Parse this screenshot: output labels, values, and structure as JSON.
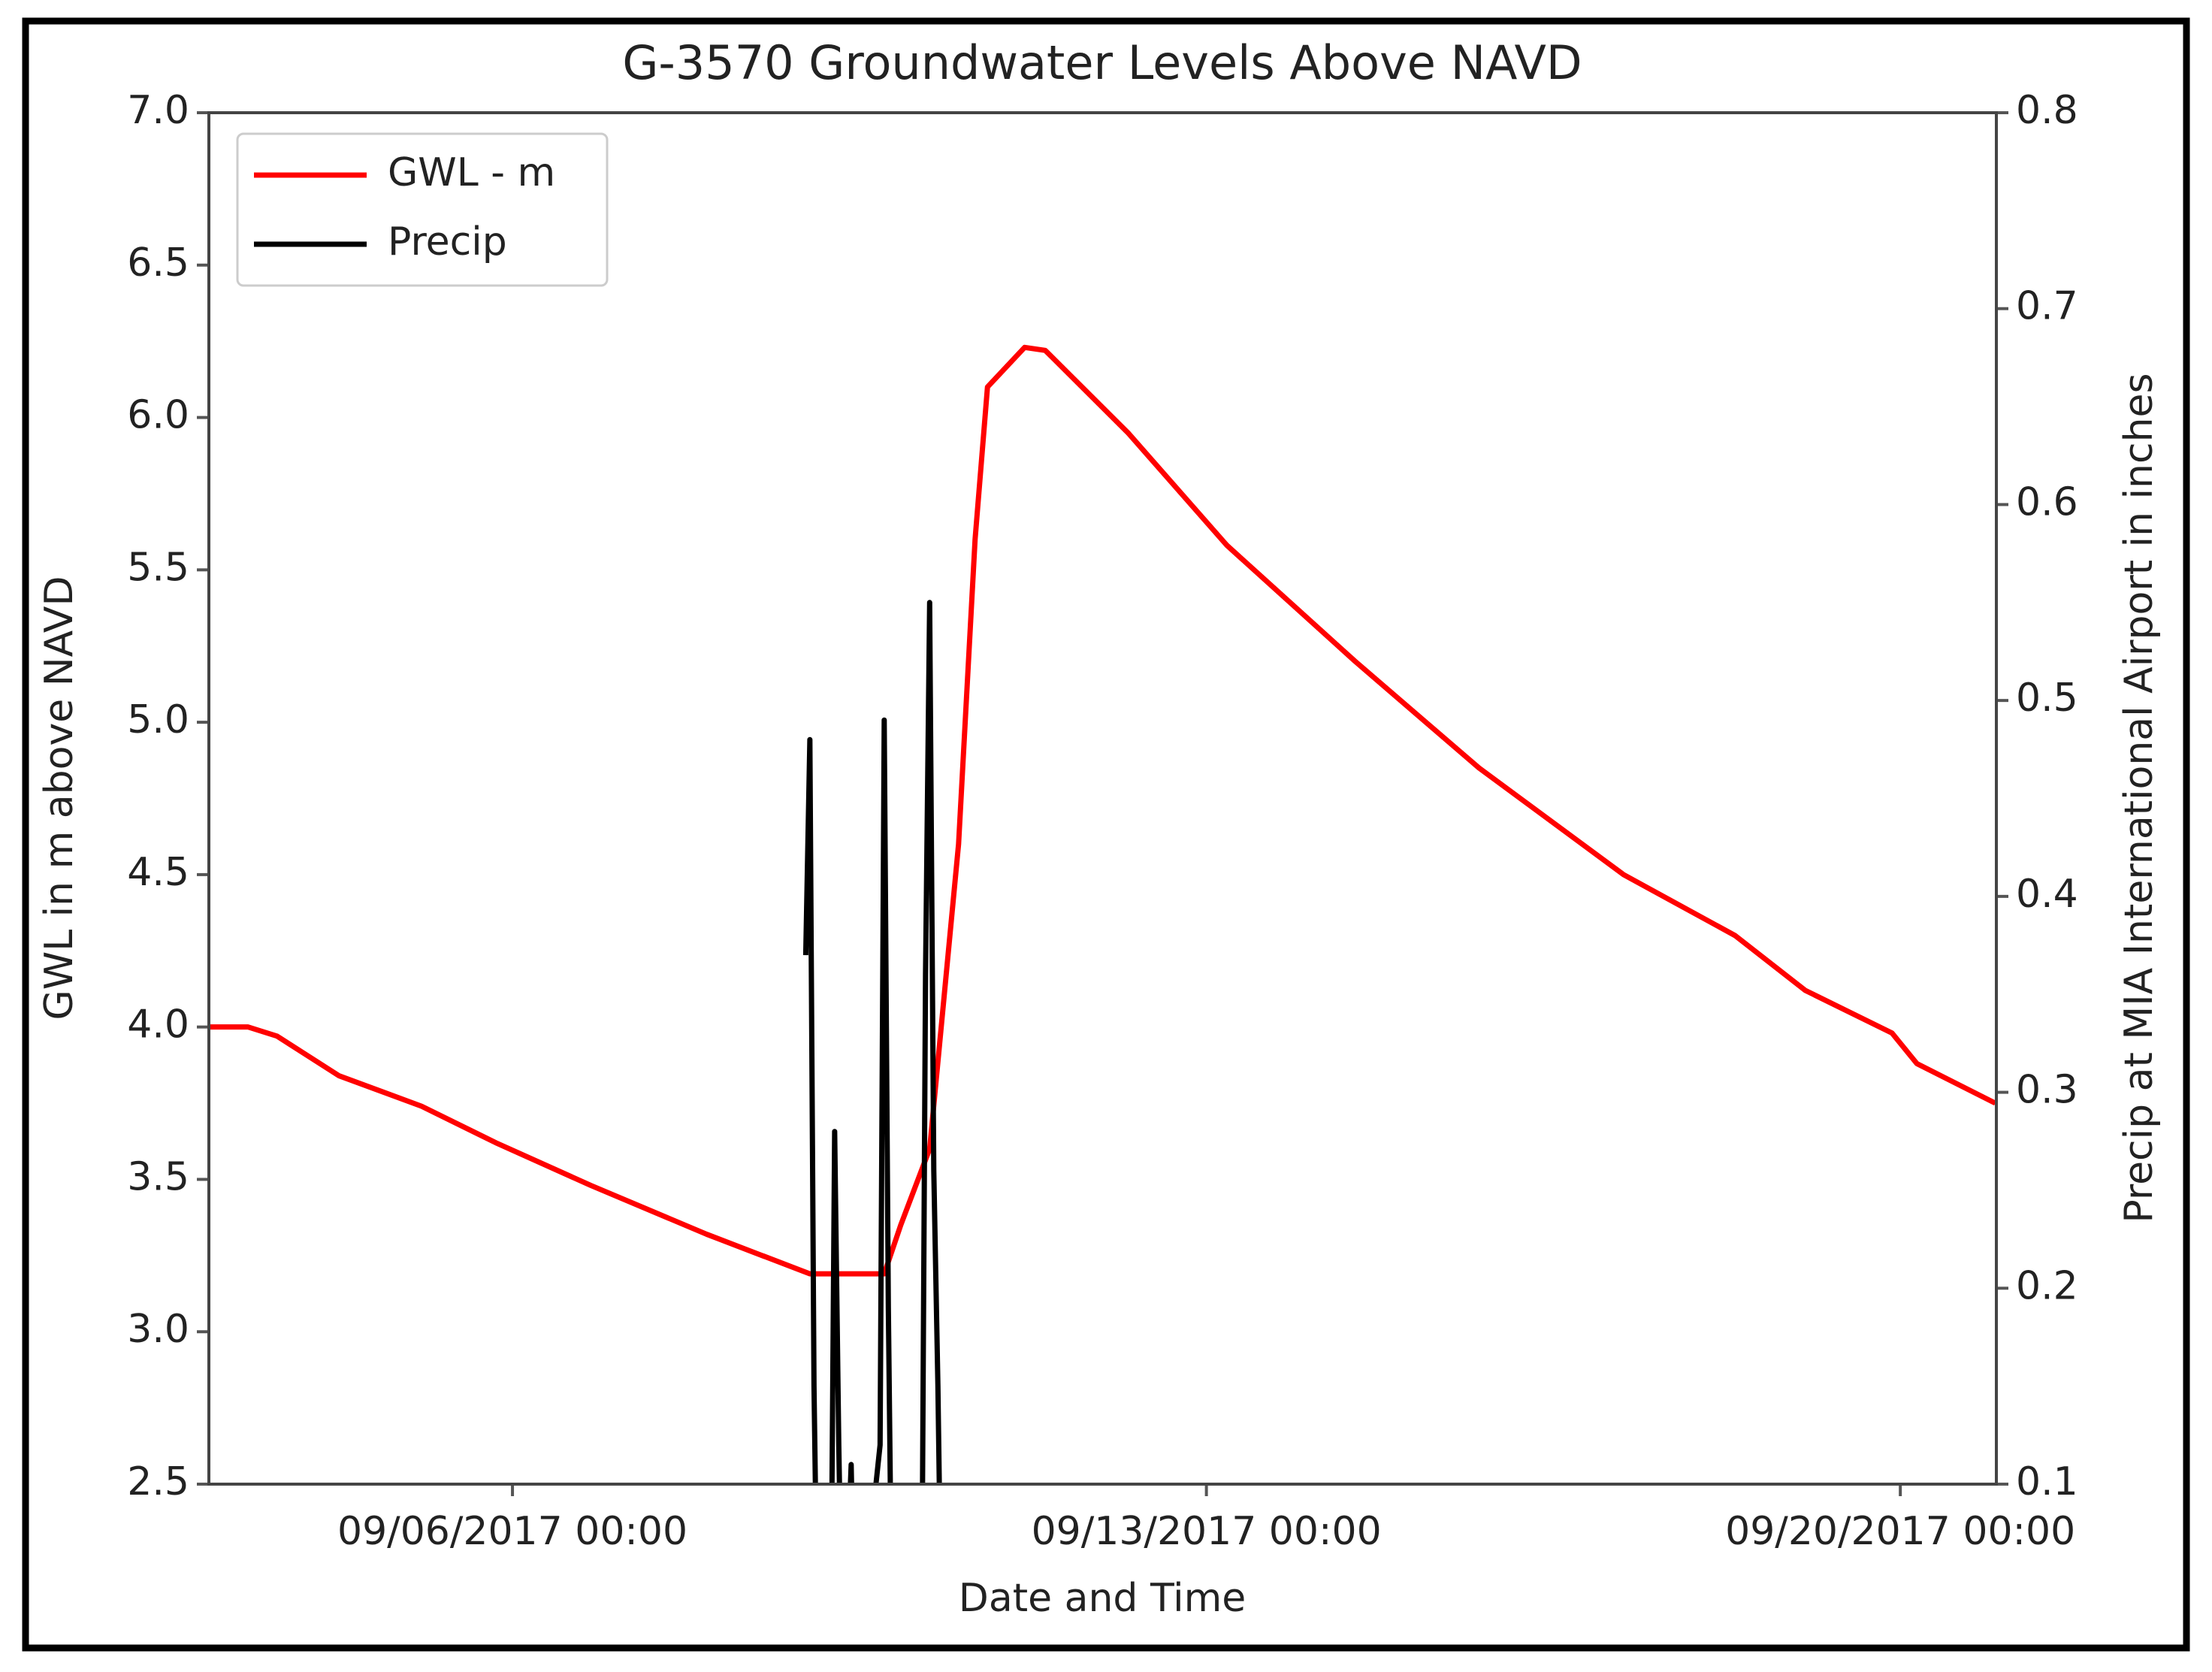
{
  "chart_data": {
    "type": "line",
    "title": "G-3570 Groundwater Levels Above NAVD",
    "xlabel": "Date and Time",
    "ylabel": "GWL in m above NAVD",
    "y2label": "Precip at MIA International Airport in inches",
    "legend": "upper left",
    "xlim": [
      "2017-09-02T22:30",
      "2017-09-20T23:15"
    ],
    "xticks": [
      {
        "value": "2017-09-06T00:00",
        "label": "09/06/2017 00:00"
      },
      {
        "value": "2017-09-13T00:00",
        "label": "09/13/2017 00:00"
      },
      {
        "value": "2017-09-20T00:00",
        "label": "09/20/2017 00:00"
      }
    ],
    "ylim": [
      2.5,
      7
    ],
    "yticks": [
      2.5,
      {
        "value": 3,
        "label": "3.0"
      },
      3.5,
      {
        "value": 4,
        "label": "4.0"
      },
      4.5,
      {
        "value": 5,
        "label": "5.0"
      },
      5.5,
      {
        "value": 6,
        "label": "6.0"
      },
      6.5,
      {
        "value": 7,
        "label": "7.0"
      }
    ],
    "y2lim": [
      0.1,
      0.8
    ],
    "y2ticks": [
      0.1,
      0.2,
      0.3,
      0.4,
      0.5,
      0.6,
      0.7,
      0.8
    ],
    "series": [
      {
        "name": "GWL - m",
        "color": "#ff0000",
        "x": [
          "2017-09-02T22:30",
          "2017-09-03T08:00",
          "2017-09-03T15:00",
          "2017-09-04T06:00",
          "2017-09-05T02:00",
          "2017-09-05T20:00",
          "2017-09-06T19:00",
          "2017-09-07T23:00",
          "2017-09-09T00:00",
          "2017-09-09T18:00",
          "2017-09-09T22:00",
          "2017-09-10T05:00",
          "2017-09-10T12:00",
          "2017-09-10T16:00",
          "2017-09-10T19:00",
          "2017-09-11T04:00",
          "2017-09-11T09:00",
          "2017-09-12T05:00",
          "2017-09-13T05:00",
          "2017-09-14T12:00",
          "2017-09-15T18:00",
          "2017-09-17T05:00",
          "2017-09-18T08:00",
          "2017-09-19T01:00",
          "2017-09-19T22:00",
          "2017-09-20T04:00",
          "2017-09-20T23:00"
        ],
        "values": [
          4.0,
          4.0,
          3.97,
          3.84,
          3.74,
          3.62,
          3.48,
          3.32,
          3.19,
          3.19,
          3.35,
          3.6,
          4.6,
          5.6,
          6.1,
          6.23,
          6.22,
          5.95,
          5.58,
          5.2,
          4.85,
          4.5,
          4.3,
          4.12,
          3.98,
          3.88,
          3.75
        ]
      },
      {
        "name": "Precip",
        "color": "#000000",
        "axis": "y2",
        "x": [
          "2017-09-08T23:00",
          "2017-09-09T00:00",
          "2017-09-09T01:00",
          "2017-09-09T02:00",
          "2017-09-09T05:00",
          "2017-09-09T06:00",
          "2017-09-09T07:00",
          "2017-09-09T08:00",
          "2017-09-09T10:00",
          "2017-09-09T11:00",
          "2017-09-09T17:00",
          "2017-09-09T18:00",
          "2017-09-09T19:00",
          "2017-09-09T20:00",
          "2017-09-10T03:00",
          "2017-09-10T04:00",
          "2017-09-10T05:00",
          "2017-09-10T06:00",
          "2017-09-10T07:00",
          "2017-09-10T08:00"
        ],
        "values": [
          0.37,
          0.48,
          0.15,
          0,
          0,
          0.28,
          0.12,
          0,
          0.11,
          0,
          0.12,
          0.49,
          0.19,
          0,
          0,
          0.36,
          0.55,
          0.26,
          0.15,
          0
        ]
      }
    ]
  }
}
